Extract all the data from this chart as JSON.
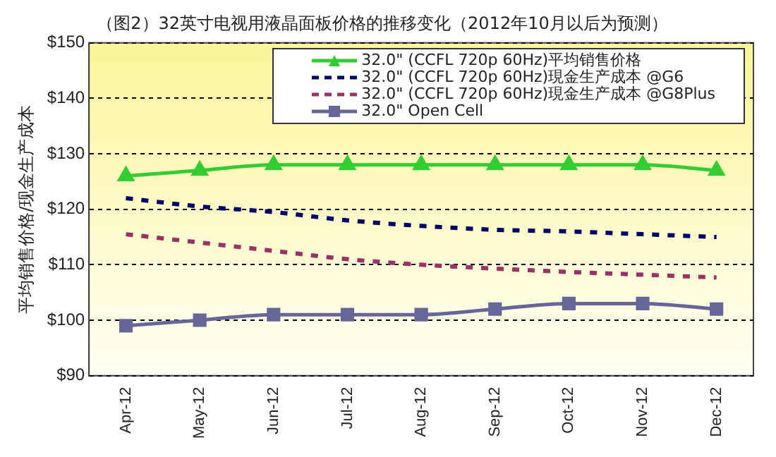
{
  "chart_data": {
    "type": "line",
    "title": "（图2）32英寸电视用液晶面板价格的推移变化（2012年10月以后为预测）",
    "ylabel": "平均销售价格/现金生产成本",
    "categories": [
      "Apr-12",
      "May-12",
      "Jun-12",
      "Jul-12",
      "Aug-12",
      "Sep-12",
      "Oct-12",
      "Nov-12",
      "Dec-12"
    ],
    "series": [
      {
        "name": "32.0\" (CCFL 720p 60Hz)平均销售价格",
        "color": "#33cc33",
        "marker": "triangle",
        "line_style": "solid",
        "values": [
          126,
          127,
          128,
          128,
          128,
          128,
          128,
          128,
          127
        ]
      },
      {
        "name": "32.0\" (CCFL 720p 60Hz)現金生产成本 @G6",
        "color": "#000066",
        "marker": "none",
        "line_style": "dashed",
        "values": [
          122,
          120.5,
          119.5,
          118,
          117,
          116.3,
          116,
          115.5,
          115
        ]
      },
      {
        "name": "32.0\" (CCFL 720p 60Hz)現金生产成本 @G8Plus",
        "color": "#993366",
        "marker": "none",
        "line_style": "dashed",
        "values": [
          115.5,
          114,
          112.5,
          111,
          110,
          109.3,
          108.7,
          108.2,
          107.7
        ]
      },
      {
        "name": "32.0\" Open Cell",
        "color": "#666699",
        "marker": "square",
        "line_style": "solid",
        "values": [
          99,
          100,
          101,
          101,
          101,
          102,
          103,
          103,
          102
        ]
      }
    ],
    "ylim": [
      90,
      150
    ],
    "yticks": [
      {
        "value": 90,
        "label": "$90"
      },
      {
        "value": 100,
        "label": "$100"
      },
      {
        "value": 110,
        "label": "$110"
      },
      {
        "value": 120,
        "label": "$120"
      },
      {
        "value": 130,
        "label": "$130"
      },
      {
        "value": 140,
        "label": "$140"
      },
      {
        "value": 150,
        "label": "$150"
      }
    ],
    "grid": "y",
    "legend": "top right"
  }
}
